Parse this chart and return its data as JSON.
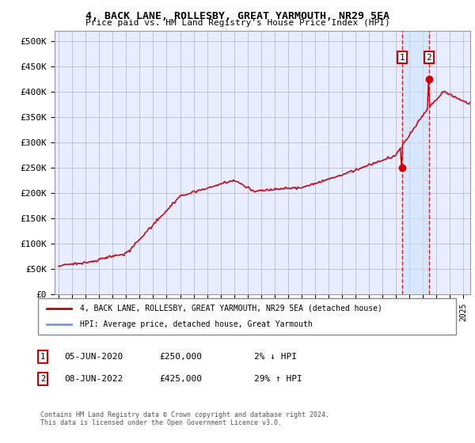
{
  "title": "4, BACK LANE, ROLLESBY, GREAT YARMOUTH, NR29 5EA",
  "subtitle": "Price paid vs. HM Land Registry's House Price Index (HPI)",
  "ylabel_ticks": [
    "£0",
    "£50K",
    "£100K",
    "£150K",
    "£200K",
    "£250K",
    "£300K",
    "£350K",
    "£400K",
    "£450K",
    "£500K"
  ],
  "ytick_values": [
    0,
    50000,
    100000,
    150000,
    200000,
    250000,
    300000,
    350000,
    400000,
    450000,
    500000
  ],
  "ylim": [
    0,
    520000
  ],
  "xlim_start": 1994.7,
  "xlim_end": 2025.5,
  "background_color": "#ffffff",
  "plot_bg_color": "#e8eeff",
  "grid_color": "#bbbbcc",
  "hpi_line_color": "#7799dd",
  "price_line_color": "#cc0000",
  "transaction1_date": 2020.44,
  "transaction1_price": 250000,
  "transaction2_date": 2022.44,
  "transaction2_price": 425000,
  "legend_label1": "4, BACK LANE, ROLLESBY, GREAT YARMOUTH, NR29 5EA (detached house)",
  "legend_label2": "HPI: Average price, detached house, Great Yarmouth",
  "annotation1_label": "1",
  "annotation1_date_str": "05-JUN-2020",
  "annotation1_price_str": "£250,000",
  "annotation1_pct": "2% ↓ HPI",
  "annotation2_label": "2",
  "annotation2_date_str": "08-JUN-2022",
  "annotation2_price_str": "£425,000",
  "annotation2_pct": "29% ↑ HPI",
  "footnote": "Contains HM Land Registry data © Crown copyright and database right 2024.\nThis data is licensed under the Open Government Licence v3.0."
}
